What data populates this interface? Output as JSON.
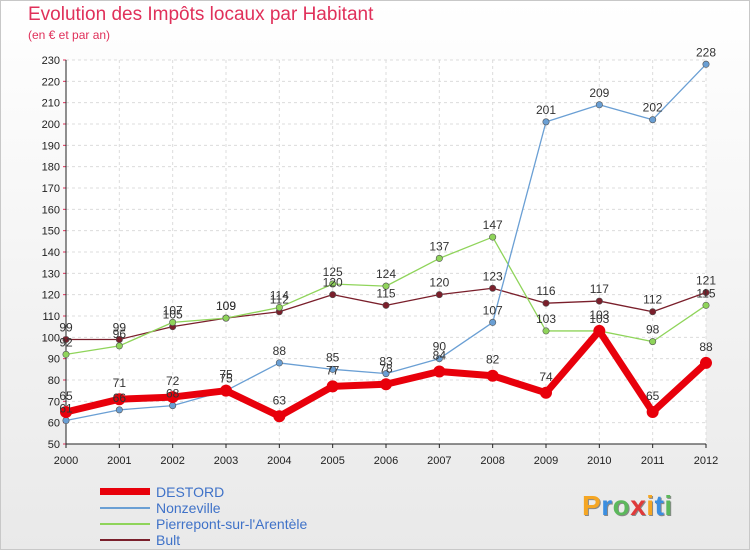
{
  "header": {
    "title": "Evolution des Impôts locaux par Habitant",
    "subtitle": "(en € et par an)"
  },
  "logo": {
    "letters": [
      "P",
      "r",
      "o",
      "x",
      "i",
      "t",
      "i"
    ],
    "colors": [
      "#f5a623",
      "#3b8ee0",
      "#5cb85c",
      "#e03a3a",
      "#f5a623",
      "#3b8ee0",
      "#5cb85c"
    ]
  },
  "chart_data": {
    "type": "line",
    "x": [
      2000,
      2001,
      2002,
      2003,
      2004,
      2005,
      2006,
      2007,
      2008,
      2009,
      2010,
      2011,
      2012
    ],
    "ylim": [
      50,
      230
    ],
    "yticks": [
      50,
      60,
      70,
      80,
      90,
      100,
      110,
      120,
      130,
      140,
      150,
      160,
      170,
      180,
      190,
      200,
      210,
      220,
      230
    ],
    "grid": true,
    "legend_position": "bottom-left",
    "series": [
      {
        "name": "Bult",
        "color": "#7a1f2b",
        "values": [
          99,
          99,
          105,
          109,
          112,
          120,
          115,
          120,
          123,
          116,
          117,
          112,
          121
        ]
      },
      {
        "name": "Pierrepont-sur-l'Arentèle",
        "color": "#8fd45a",
        "values": [
          92,
          96,
          107,
          109,
          114,
          125,
          124,
          137,
          147,
          103,
          103,
          98,
          115
        ]
      },
      {
        "name": "Nonzeville",
        "color": "#6a9fd4",
        "values": [
          61,
          66,
          68,
          75,
          88,
          85,
          83,
          90,
          107,
          201,
          209,
          202,
          228
        ]
      },
      {
        "name": "DESTORD",
        "color": "#e8000b",
        "values": [
          65,
          71,
          72,
          75,
          63,
          77,
          78,
          84,
          82,
          74,
          103,
          65,
          88
        ]
      }
    ],
    "legend": [
      "DESTORD",
      "Nonzeville",
      "Pierrepont-sur-l'Arentèle",
      "Bult"
    ]
  }
}
